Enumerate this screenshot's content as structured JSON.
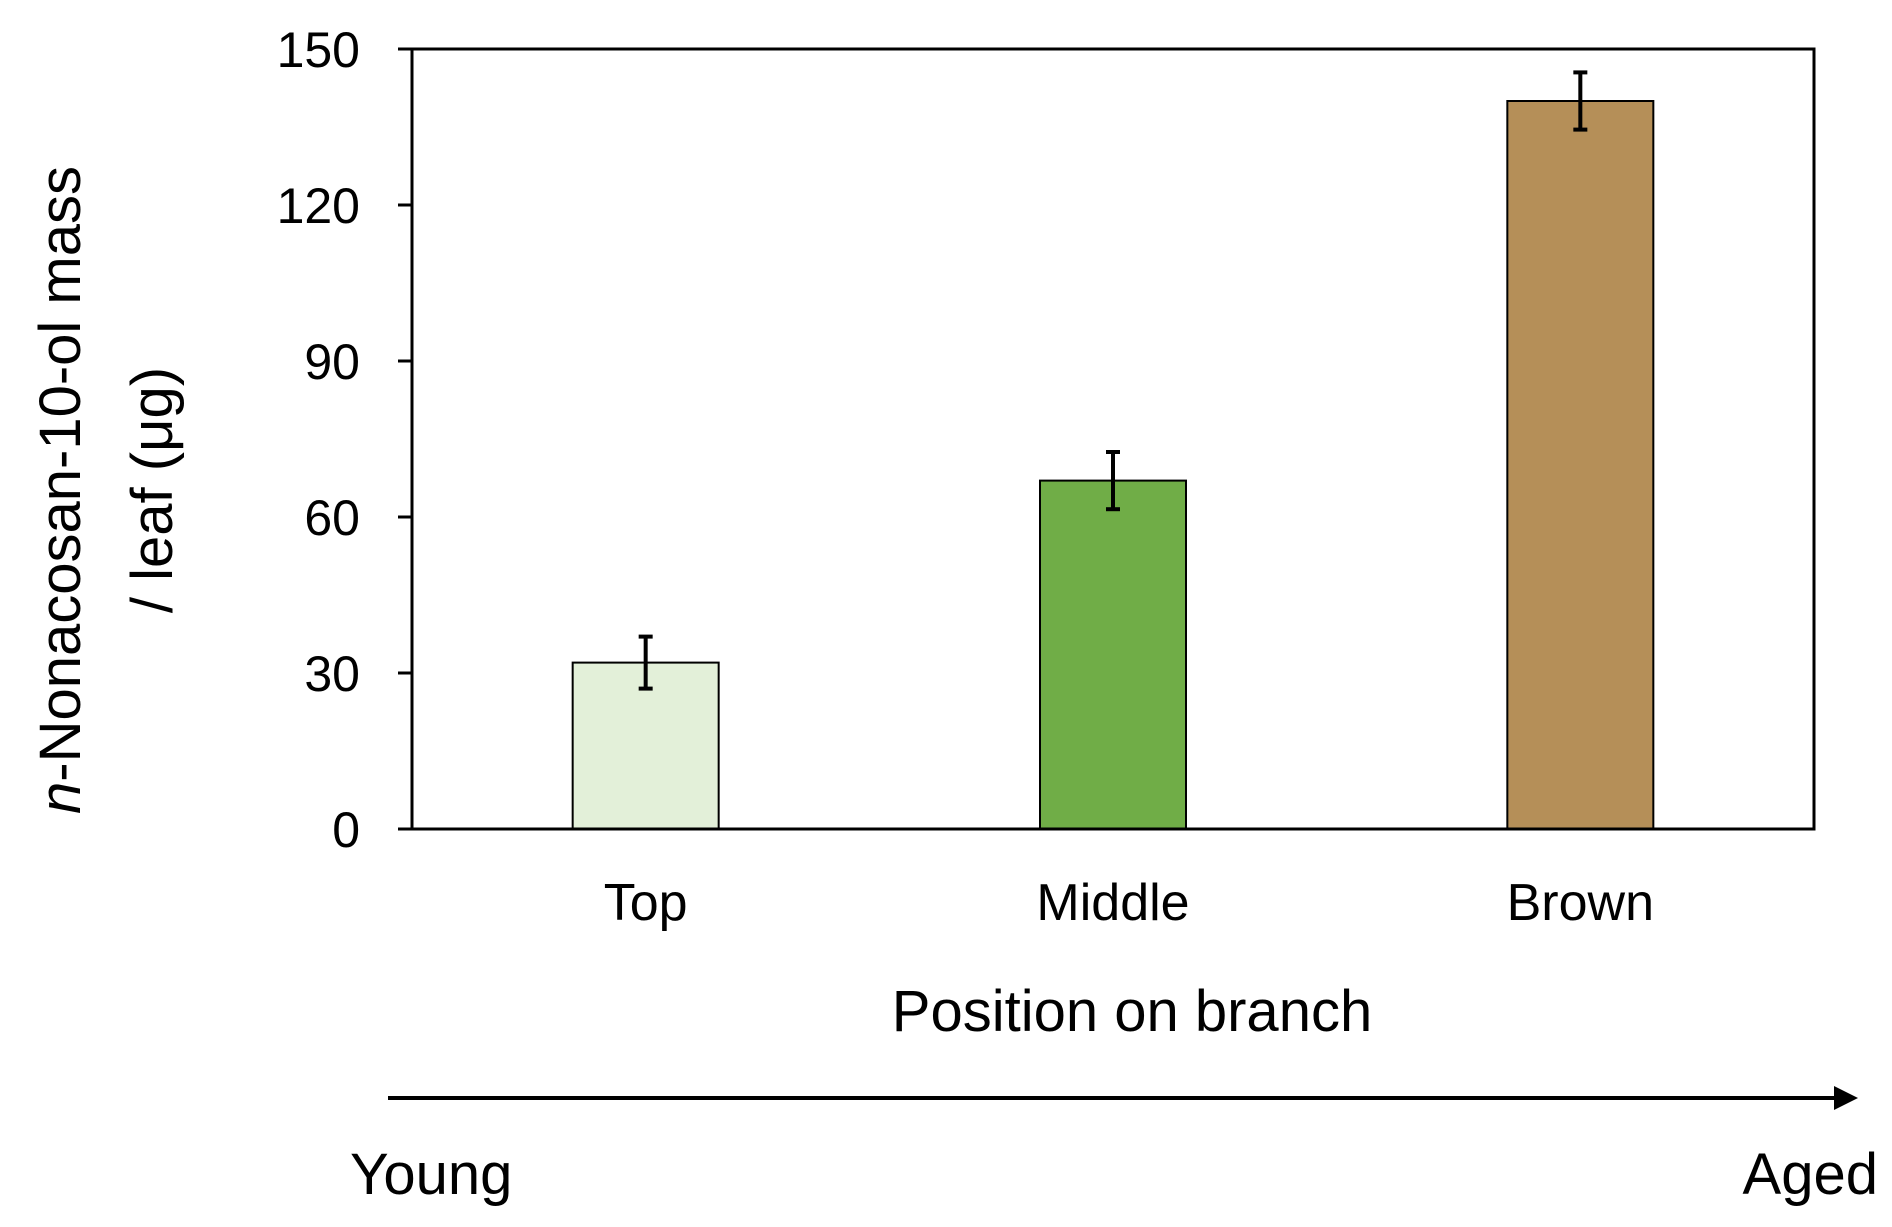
{
  "chart_data": {
    "type": "bar",
    "categories": [
      "Top",
      "Middle",
      "Brown"
    ],
    "values": [
      32,
      67,
      140
    ],
    "errors": [
      5,
      5.5,
      5.5
    ],
    "colors": [
      "#e3f0d9",
      "#70ad47",
      "#b58f58"
    ],
    "xlabel": "Position on branch",
    "ylabel_prefix": "n",
    "ylabel_line1_rest": "-Nonacosan-10-ol mass",
    "ylabel_line2": "/ leaf (μg)",
    "ylim": [
      0,
      150
    ],
    "yticks": [
      "0",
      "30",
      "60",
      "90",
      "120",
      "150"
    ],
    "grid": false,
    "legend": "none"
  },
  "age_arrow": {
    "start_label": "Young",
    "end_label": "Aged"
  }
}
